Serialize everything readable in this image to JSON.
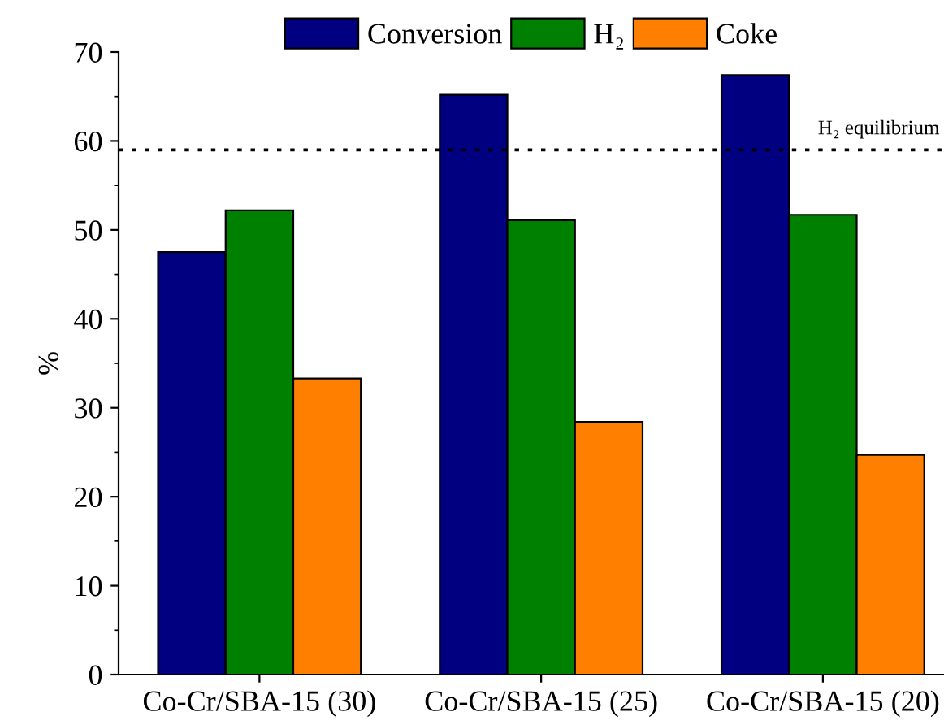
{
  "chart_data": {
    "type": "bar",
    "ylabel": "%",
    "categories": [
      "Co-Cr/SBA-15 (30)",
      "Co-Cr/SBA-15 (25)",
      "Co-Cr/SBA-15 (20)"
    ],
    "series": [
      {
        "name": "Conversion",
        "color": "#000080",
        "values": [
          47.5,
          65.2,
          67.4
        ]
      },
      {
        "name": "H₂",
        "color": "#008000",
        "values": [
          52.2,
          51.1,
          51.7
        ]
      },
      {
        "name": "Coke",
        "color": "#ff8000",
        "values": [
          33.3,
          28.4,
          24.7
        ]
      }
    ],
    "ylim": [
      0,
      70
    ],
    "yticks": [
      0,
      10,
      20,
      30,
      40,
      50,
      60,
      70
    ],
    "grid": false,
    "legend": "top",
    "ref_lines": [
      {
        "axis": "y",
        "value": 59,
        "label": "H₂ equilibrium",
        "color": "#000000",
        "line_style": "dotted"
      }
    ]
  }
}
